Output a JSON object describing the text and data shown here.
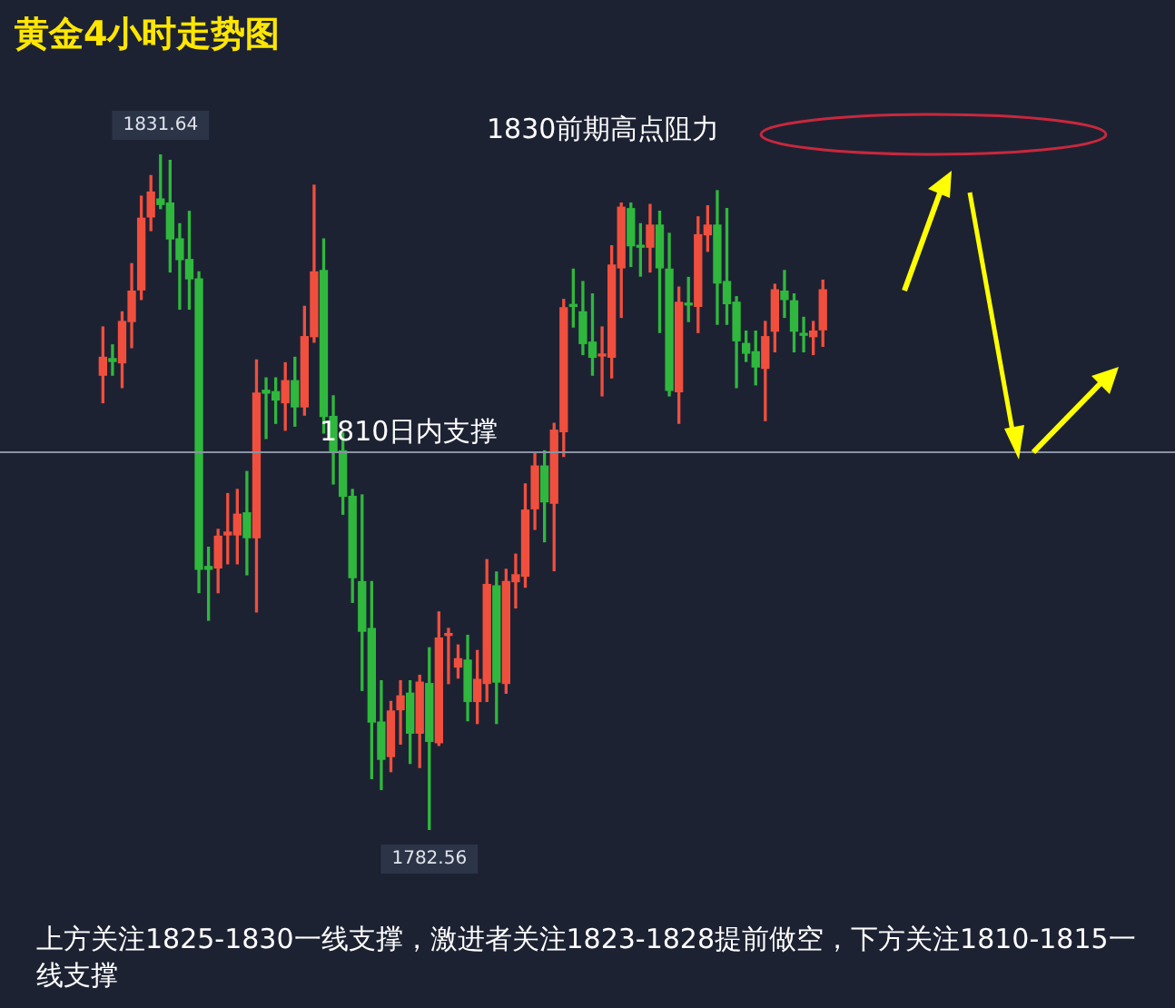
{
  "chart_data": {
    "type": "candlestick",
    "title": "黄金4小时走势图",
    "categories": [
      null,
      null,
      null,
      null,
      null,
      null,
      null,
      null,
      null,
      null,
      null,
      null,
      null,
      null,
      null,
      null,
      null,
      null,
      null,
      null,
      null,
      null,
      null,
      null,
      null,
      null,
      null,
      null,
      null,
      null,
      null,
      null,
      null,
      null,
      null,
      null,
      null,
      null,
      null,
      null,
      null,
      null,
      null,
      null,
      null,
      null,
      null,
      null,
      null,
      null,
      null,
      null,
      null,
      null,
      null,
      null,
      null,
      null,
      null,
      null,
      null,
      null,
      null,
      null,
      null,
      null,
      null,
      null,
      null,
      null,
      null,
      null,
      null,
      null,
      null,
      null
    ],
    "ohlc": [
      [
        1815.6,
        1819.1,
        1813.6,
        1816.9
      ],
      [
        1816.8,
        1817.8,
        1815.6,
        1816.6
      ],
      [
        1816.5,
        1820.2,
        1814.7,
        1819.5
      ],
      [
        1819.5,
        1823.7,
        1817.6,
        1821.7
      ],
      [
        1821.8,
        1828.6,
        1821.1,
        1827.0
      ],
      [
        1827.1,
        1830.1,
        1826.1,
        1828.9
      ],
      [
        1828.4,
        1831.64,
        1827.7,
        1828.0
      ],
      [
        1828.1,
        1831.2,
        1823.1,
        1825.5
      ],
      [
        1825.5,
        1826.6,
        1820.4,
        1824.0
      ],
      [
        1824.0,
        1827.5,
        1820.4,
        1822.6
      ],
      [
        1822.6,
        1823.1,
        1799.8,
        1801.5
      ],
      [
        1801.7,
        1803.1,
        1797.8,
        1801.5
      ],
      [
        1801.6,
        1804.4,
        1799.8,
        1803.9
      ],
      [
        1804.0,
        1807.0,
        1801.9,
        1804.2
      ],
      [
        1804.0,
        1807.3,
        1801.9,
        1805.5
      ],
      [
        1805.6,
        1808.6,
        1801.1,
        1803.8
      ],
      [
        1803.8,
        1816.7,
        1798.4,
        1814.3
      ],
      [
        1814.5,
        1815.4,
        1811.0,
        1814.3
      ],
      [
        1814.4,
        1815.4,
        1812.1,
        1813.8
      ],
      [
        1813.6,
        1816.5,
        1811.6,
        1815.2
      ],
      [
        1815.2,
        1816.9,
        1811.9,
        1813.3
      ],
      [
        1813.3,
        1820.6,
        1812.7,
        1818.4
      ],
      [
        1818.4,
        1829.4,
        1818.0,
        1823.1
      ],
      [
        1823.2,
        1825.5,
        1811.4,
        1812.6
      ],
      [
        1812.6,
        1814.1,
        1807.7,
        1810.1
      ],
      [
        1810.1,
        1811.4,
        1805.5,
        1806.8
      ],
      [
        1806.8,
        1807.3,
        1799.1,
        1800.9
      ],
      [
        1800.6,
        1806.9,
        1792.7,
        1797.0
      ],
      [
        1797.2,
        1800.6,
        1786.3,
        1790.4
      ],
      [
        1790.4,
        1793.4,
        1785.5,
        1787.7
      ],
      [
        1787.9,
        1791.9,
        1786.8,
        1791.2
      ],
      [
        1791.3,
        1793.4,
        1788.8,
        1792.3
      ],
      [
        1792.5,
        1793.4,
        1787.4,
        1789.6
      ],
      [
        1789.6,
        1793.8,
        1787.1,
        1793.3
      ],
      [
        1793.2,
        1795.8,
        1782.56,
        1789.0
      ],
      [
        1788.9,
        1798.4,
        1788.7,
        1796.5
      ],
      [
        1796.7,
        1797.2,
        1793.2,
        1796.8
      ],
      [
        1794.4,
        1796.0,
        1793.6,
        1795.0
      ],
      [
        1794.9,
        1796.7,
        1790.5,
        1791.9
      ],
      [
        1791.9,
        1795.6,
        1790.3,
        1793.5
      ],
      [
        1793.2,
        1802.2,
        1791.9,
        1800.4
      ],
      [
        1800.3,
        1801.3,
        1790.3,
        1793.3
      ],
      [
        1793.2,
        1801.5,
        1792.5,
        1800.6
      ],
      [
        1800.6,
        1802.6,
        1798.7,
        1801.1
      ],
      [
        1801.0,
        1807.7,
        1800.2,
        1805.8
      ],
      [
        1805.9,
        1809.9,
        1804.4,
        1809.0
      ],
      [
        1809.0,
        1810.1,
        1803.5,
        1806.4
      ],
      [
        1806.3,
        1812.1,
        1801.4,
        1811.6
      ],
      [
        1811.5,
        1821.1,
        1809.7,
        1820.5
      ],
      [
        1820.7,
        1823.3,
        1819.1,
        1820.6
      ],
      [
        1820.2,
        1822.4,
        1817.1,
        1817.9
      ],
      [
        1818.0,
        1821.5,
        1815.6,
        1816.9
      ],
      [
        1817.0,
        1819.1,
        1814.1,
        1817.1
      ],
      [
        1816.9,
        1825.0,
        1815.4,
        1823.6
      ],
      [
        1823.4,
        1828.1,
        1819.8,
        1827.8
      ],
      [
        1827.7,
        1828.1,
        1823.5,
        1825.0
      ],
      [
        1825.0,
        1826.6,
        1822.8,
        1824.9
      ],
      [
        1824.9,
        1828.0,
        1823.1,
        1826.5
      ],
      [
        1826.5,
        1827.5,
        1818.7,
        1823.4
      ],
      [
        1823.3,
        1825.9,
        1814.1,
        1814.5
      ],
      [
        1814.4,
        1822.0,
        1812.1,
        1820.9
      ],
      [
        1820.8,
        1822.7,
        1819.5,
        1820.7
      ],
      [
        1820.6,
        1827.1,
        1818.7,
        1825.8
      ],
      [
        1825.8,
        1827.9,
        1824.6,
        1826.5
      ],
      [
        1826.5,
        1829.0,
        1819.3,
        1822.3
      ],
      [
        1822.4,
        1827.7,
        1819.3,
        1820.8
      ],
      [
        1820.9,
        1821.3,
        1814.7,
        1818.1
      ],
      [
        1817.9,
        1818.8,
        1816.6,
        1817.2
      ],
      [
        1817.3,
        1818.8,
        1814.9,
        1816.2
      ],
      [
        1816.1,
        1819.5,
        1812.3,
        1818.4
      ],
      [
        1818.8,
        1822.2,
        1817.3,
        1821.8
      ],
      [
        1821.7,
        1823.2,
        1819.8,
        1821.1
      ],
      [
        1821.0,
        1821.5,
        1817.3,
        1818.8
      ],
      [
        1818.6,
        1819.8,
        1817.3,
        1818.5
      ],
      [
        1818.4,
        1819.5,
        1817.1,
        1818.8
      ],
      [
        1818.9,
        1822.5,
        1817.7,
        1821.8
      ]
    ],
    "ref_lines": [
      {
        "axis": "y",
        "value": 1810,
        "label": "1810日内支撑",
        "color": "#8a93a3"
      }
    ],
    "annotations": [
      {
        "text": "1831.64",
        "y": 1831.64
      },
      {
        "text": "1782.56",
        "y": 1782.56
      },
      "1830前期高点阻力",
      "上方关注1825-1830一线支撑，激进者关注1823-1828提前做空，下方关注1810-1815一线支撑"
    ]
  }
}
